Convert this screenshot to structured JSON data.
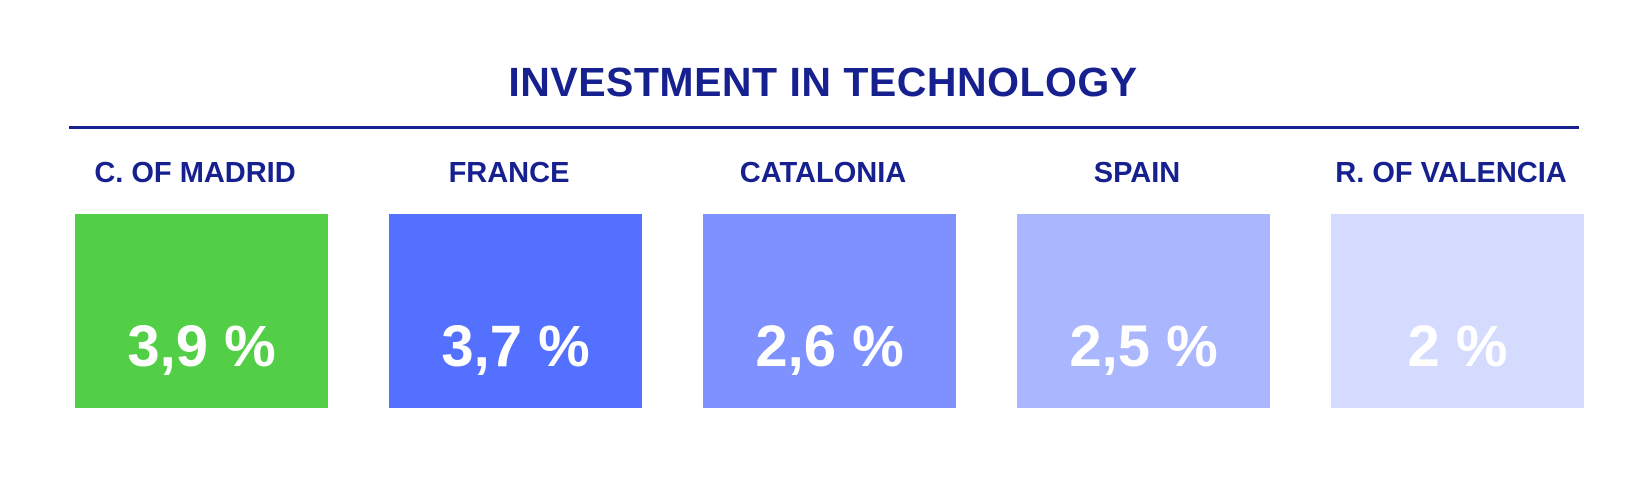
{
  "chart_data": {
    "type": "bar",
    "title": "INVESTMENT IN TECHNOLOGY",
    "categories": [
      "C. OF MADRID",
      "FRANCE",
      "CATALONIA",
      "SPAIN",
      "R. OF VALENCIA"
    ],
    "values": [
      3.9,
      3.7,
      2.6,
      2.5,
      2
    ],
    "value_labels": [
      "3,9 %",
      "3,7 %",
      "2,6 %",
      "2,5 %",
      "2 %"
    ],
    "colors": [
      "#52cf47",
      "#5470fe",
      "#7e91fe",
      "#aab6fe",
      "#d4dbfe"
    ],
    "unit": "%"
  },
  "colors": {
    "title": "#16208f",
    "rule": "#16208f",
    "value_text": "#ffffff"
  }
}
